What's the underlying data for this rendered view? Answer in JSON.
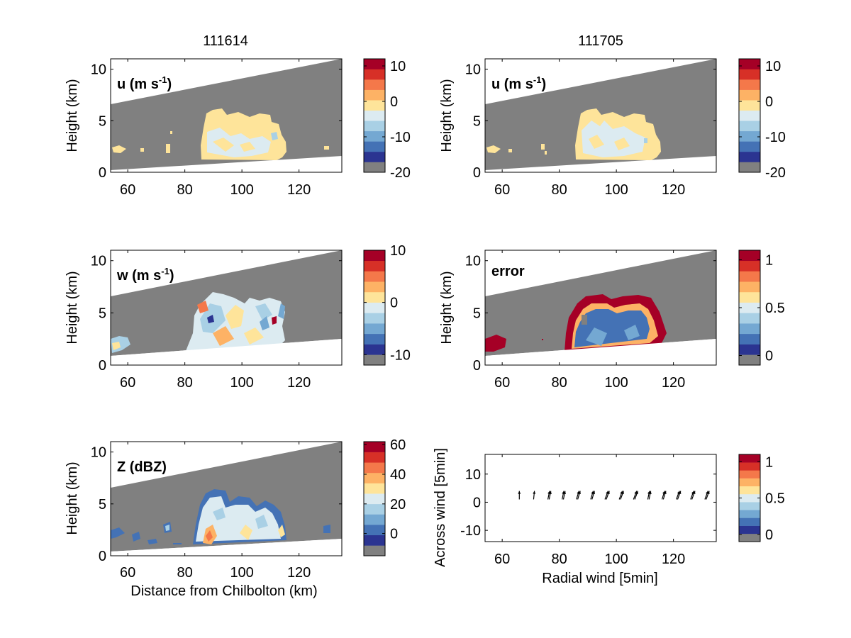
{
  "titles": [
    "111614",
    "111705"
  ],
  "colors": {
    "scale": [
      "#808080",
      "#2b3491",
      "#4472b5",
      "#74a8d2",
      "#a9d0e5",
      "#dcebf1",
      "#fee49a",
      "#fdb265",
      "#f4784a",
      "#d73027",
      "#a50026"
    ],
    "grey": "#808080"
  },
  "panels": [
    {
      "id": "u-left",
      "label": "u (m s",
      "label_sup": "-1",
      "label_close": ")",
      "ylabel": "Height (km)",
      "xlabel": "",
      "xticks": [
        "60",
        "80",
        "100",
        "120"
      ],
      "yticks": [
        "0",
        "5",
        "10"
      ],
      "colorbar_ticks": [
        "10",
        "0",
        "-10",
        "-20"
      ]
    },
    {
      "id": "u-right",
      "label": "u (m s",
      "label_sup": "-1",
      "label_close": ")",
      "ylabel": "Height (km)",
      "xlabel": "",
      "xticks": [
        "60",
        "80",
        "100",
        "120"
      ],
      "yticks": [
        "0",
        "5",
        "10"
      ],
      "colorbar_ticks": [
        "10",
        "0",
        "-10",
        "-20"
      ]
    },
    {
      "id": "w-left",
      "label": "w (m s",
      "label_sup": "-1",
      "label_close": ")",
      "ylabel": "Height (km)",
      "xlabel": "",
      "xticks": [
        "60",
        "80",
        "100",
        "120"
      ],
      "yticks": [
        "0",
        "5",
        "10"
      ],
      "colorbar_ticks": [
        "10",
        "0",
        "-10"
      ]
    },
    {
      "id": "error-right",
      "label": "error",
      "label_sup": "",
      "label_close": "",
      "ylabel": "Height (km)",
      "xlabel": "",
      "xticks": [
        "60",
        "80",
        "100",
        "120"
      ],
      "yticks": [
        "0",
        "5",
        "10"
      ],
      "colorbar_ticks": [
        "1",
        "0.5",
        "0"
      ]
    },
    {
      "id": "z-left",
      "label": "Z (dBZ)",
      "label_sup": "",
      "label_close": "",
      "ylabel": "Height (km)",
      "xlabel": "Distance from Chilbolton (km)",
      "xticks": [
        "60",
        "80",
        "100",
        "120"
      ],
      "yticks": [
        "0",
        "5",
        "10"
      ],
      "colorbar_ticks": [
        "60",
        "40",
        "20",
        "0"
      ]
    },
    {
      "id": "wind-right",
      "label": "",
      "label_sup": "",
      "label_close": "",
      "ylabel": "Across wind [5min]",
      "xlabel": "Radial wind [5min]",
      "xticks": [
        "60",
        "80",
        "100",
        "120"
      ],
      "yticks": [
        "-10",
        "0",
        "10"
      ],
      "colorbar_ticks": [
        "1",
        "0.5",
        "0"
      ]
    }
  ],
  "chart_data": [
    {
      "type": "heatmap",
      "panel": "u-left",
      "title": "111614",
      "annotation": "u (m s-1)",
      "ylabel": "Height (km)",
      "xlim": [
        54,
        135
      ],
      "ylim": [
        0,
        11
      ],
      "colorbar": {
        "range": [
          -20,
          12
        ],
        "ticks": [
          10,
          0,
          -10,
          -20
        ]
      },
      "summary": "Echo region ~86-115 km, 0.5-6 km height; u mostly 0 to 5 m/s with patches of -5 to 0 m/s"
    },
    {
      "type": "heatmap",
      "panel": "u-right",
      "title": "111705",
      "annotation": "u (m s-1)",
      "ylabel": "Height (km)",
      "xlim": [
        54,
        135
      ],
      "ylim": [
        0,
        11
      ],
      "colorbar": {
        "range": [
          -20,
          12
        ],
        "ticks": [
          10,
          0,
          -10,
          -20
        ]
      },
      "summary": "Echo region ~86-115 km, 0.5-6 km height; u mostly -5 to 5 m/s"
    },
    {
      "type": "heatmap",
      "panel": "w-left",
      "annotation": "w (m s-1)",
      "ylabel": "Height (km)",
      "xlim": [
        54,
        135
      ],
      "ylim": [
        0,
        11
      ],
      "colorbar": {
        "range": [
          -12,
          10
        ],
        "ticks": [
          10,
          0,
          -10
        ]
      },
      "summary": "Vertical velocity -10 to 10 m/s in echo region ~85-115 km"
    },
    {
      "type": "heatmap",
      "panel": "error-right",
      "annotation": "error",
      "ylabel": "Height (km)",
      "xlim": [
        54,
        135
      ],
      "ylim": [
        0,
        11
      ],
      "colorbar": {
        "range": [
          -0.1,
          1.1
        ],
        "ticks": [
          1,
          0.5,
          0
        ]
      },
      "summary": "Error ~0.1-0.3 in the interior, rising to ~1 at echo edges"
    },
    {
      "type": "heatmap",
      "panel": "z-left",
      "annotation": "Z (dBZ)",
      "ylabel": "Height (km)",
      "xlabel": "Distance from Chilbolton (km)",
      "xlim": [
        54,
        135
      ],
      "ylim": [
        0,
        11
      ],
      "colorbar": {
        "range": [
          -15,
          62
        ],
        "ticks": [
          60,
          40,
          20,
          0
        ]
      },
      "summary": "Reflectivity up to ~45 dBZ near 88 km below 3 km; scattered weak echoes 55-80 km and ~130 km"
    },
    {
      "type": "scatter",
      "panel": "wind-right",
      "xlabel": "Radial wind [5min]",
      "ylabel": "Across wind [5min]",
      "xlim": [
        54,
        135
      ],
      "ylim": [
        -14,
        17
      ],
      "colorbar": {
        "range": [
          -0.1,
          1.1
        ],
        "ticks": [
          1,
          0.5,
          0
        ]
      },
      "arrows_x": [
        66,
        71,
        76,
        81,
        86,
        91,
        96,
        101,
        106,
        111,
        116,
        121,
        126,
        131
      ],
      "arrows_y": 1,
      "arrow_dx": [
        0,
        0.3,
        0.6,
        0.6,
        0.9,
        0.9,
        1.1,
        1.1,
        1.1,
        0.6,
        0.9,
        1.1,
        1.1,
        1.1
      ],
      "arrow_dy": [
        3,
        3,
        3,
        3,
        3,
        3,
        3,
        3,
        3,
        3,
        3,
        3,
        3,
        3
      ]
    }
  ]
}
